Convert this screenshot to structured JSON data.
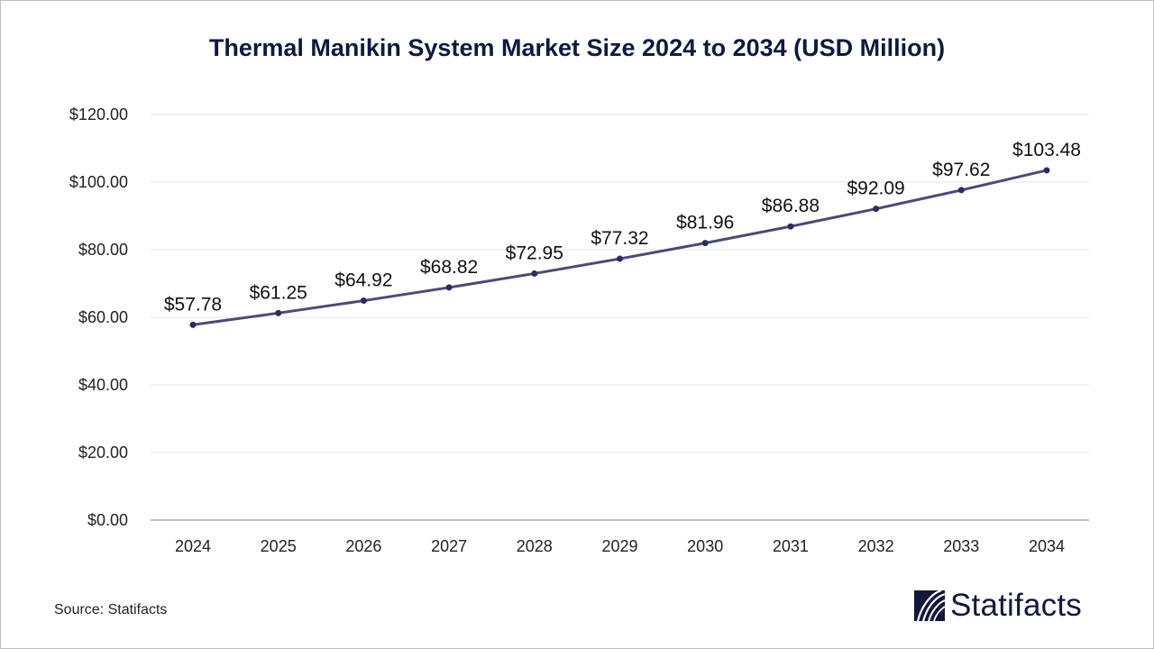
{
  "title": "Thermal Manikin System Market Size 2024 to 2034 (USD Million)",
  "source": "Source: Statifacts",
  "logo": {
    "text": "Statifacts"
  },
  "colors": {
    "line": "#4a4a7a",
    "marker": "#2b2b5e",
    "title": "#0f1a3c",
    "grid": "#e6e6e6"
  },
  "chart_data": {
    "type": "line",
    "title": "Thermal Manikin System Market Size 2024 to 2034 (USD Million)",
    "xlabel": "",
    "ylabel": "",
    "x": [
      "2024",
      "2025",
      "2026",
      "2027",
      "2028",
      "2029",
      "2030",
      "2031",
      "2032",
      "2033",
      "2034"
    ],
    "values": [
      57.78,
      61.25,
      64.92,
      68.82,
      72.95,
      77.32,
      81.96,
      86.88,
      92.09,
      97.62,
      103.48
    ],
    "data_labels": [
      "$57.78",
      "$61.25",
      "$64.92",
      "$68.82",
      "$72.95",
      "$77.32",
      "$81.96",
      "$86.88",
      "$92.09",
      "$97.62",
      "$103.48"
    ],
    "ylim": [
      0,
      120
    ],
    "yticks": [
      0,
      20,
      40,
      60,
      80,
      100,
      120
    ],
    "ytick_labels": [
      "$0.00",
      "$20.00",
      "$40.00",
      "$60.00",
      "$80.00",
      "$100.00",
      "$120.00"
    ],
    "grid": true,
    "legend": "none"
  }
}
